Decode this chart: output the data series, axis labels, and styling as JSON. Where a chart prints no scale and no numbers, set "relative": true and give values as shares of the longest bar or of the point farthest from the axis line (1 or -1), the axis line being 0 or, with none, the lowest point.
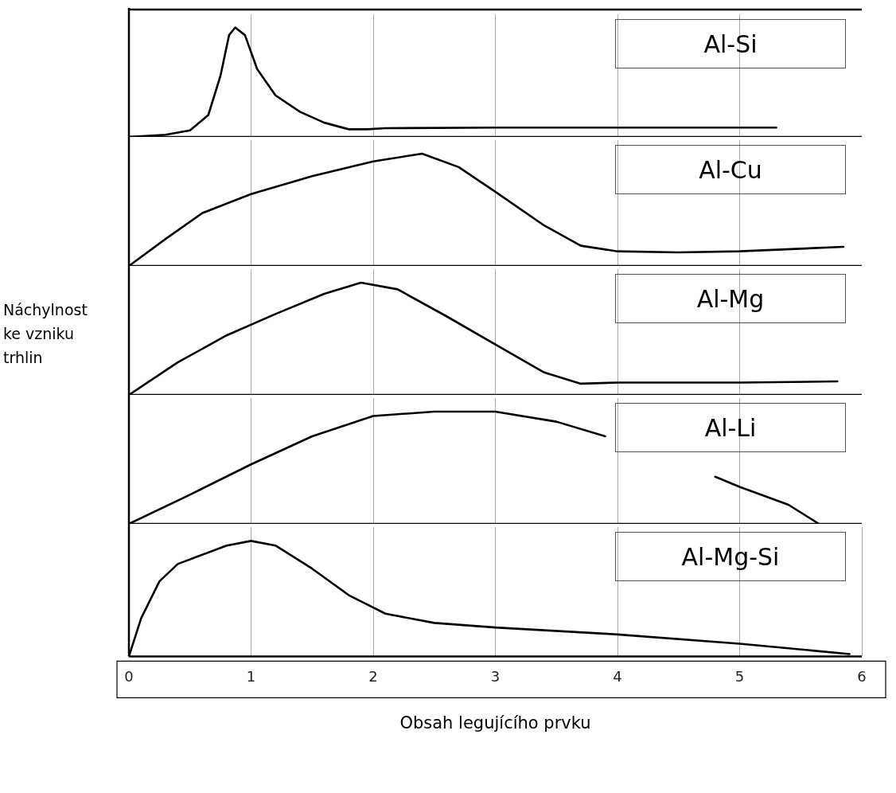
{
  "chart_data": [
    {
      "type": "line",
      "title": "Al-Si",
      "relative": true,
      "xlim": [
        0,
        6
      ],
      "tick_labels": false,
      "grid": "x",
      "series": [
        {
          "color": "#000000",
          "x": [
            0,
            0.3,
            0.5,
            0.65,
            0.75,
            0.82,
            0.87,
            0.95,
            1.05,
            1.2,
            1.4,
            1.6,
            1.8,
            1.95,
            2.1,
            3,
            4,
            5.3
          ],
          "values": [
            0,
            0.02,
            0.06,
            0.2,
            0.56,
            0.93,
            1,
            0.93,
            0.62,
            0.38,
            0.23,
            0.13,
            0.07,
            0.07,
            0.08,
            0.085,
            0.085,
            0.085
          ]
        }
      ]
    },
    {
      "type": "line",
      "title": "Al-Cu",
      "relative": true,
      "xlim": [
        0,
        6
      ],
      "tick_labels": false,
      "grid": "x",
      "series": [
        {
          "color": "#000000",
          "x": [
            0,
            0.3,
            0.6,
            1,
            1.5,
            2,
            2.4,
            2.7,
            3,
            3.4,
            3.7,
            4,
            4.5,
            5,
            5.85
          ],
          "values": [
            0,
            0.24,
            0.47,
            0.64,
            0.8,
            0.93,
            1,
            0.88,
            0.66,
            0.36,
            0.18,
            0.13,
            0.12,
            0.13,
            0.17
          ]
        }
      ]
    },
    {
      "type": "line",
      "title": "Al-Mg",
      "ylabel": "Náchylnost ke vzniku trhlin",
      "relative": true,
      "xlim": [
        0,
        6
      ],
      "tick_labels": false,
      "grid": "x",
      "series": [
        {
          "color": "#000000",
          "x": [
            0,
            0.4,
            0.8,
            1.2,
            1.6,
            1.9,
            2.2,
            2.6,
            3,
            3.4,
            3.7,
            4,
            5,
            5.8
          ],
          "values": [
            0,
            0.29,
            0.53,
            0.72,
            0.9,
            1,
            0.94,
            0.7,
            0.45,
            0.2,
            0.1,
            0.11,
            0.11,
            0.12
          ]
        }
      ]
    },
    {
      "type": "line",
      "title": "Al-Li",
      "relative": true,
      "xlim": [
        0,
        6
      ],
      "tick_labels": false,
      "grid": "x",
      "series": [
        {
          "color": "#000000",
          "x": [
            0,
            0.5,
            1,
            1.5,
            2,
            2.5,
            3,
            3.5,
            3.9,
            4.4,
            4.8,
            5,
            5.4,
            5.65
          ],
          "values": [
            0,
            0.26,
            0.53,
            0.78,
            0.96,
            1,
            1,
            0.91,
            0.78,
            null,
            0.42,
            0.33,
            0.17,
            0
          ]
        }
      ]
    },
    {
      "type": "line",
      "title": "Al-Mg-Si",
      "xlabel": "Obsah legujícího prvku",
      "relative": true,
      "xlim": [
        0,
        6
      ],
      "xticks": [
        0,
        1,
        2,
        3,
        4,
        5,
        6
      ],
      "tick_labels": "x",
      "grid": "x",
      "series": [
        {
          "color": "#000000",
          "x": [
            0,
            0.1,
            0.25,
            0.4,
            0.6,
            0.8,
            1,
            1.2,
            1.5,
            1.8,
            2.1,
            2.5,
            3,
            4,
            5,
            5.9
          ],
          "values": [
            0,
            0.33,
            0.65,
            0.8,
            0.88,
            0.96,
            1,
            0.96,
            0.76,
            0.53,
            0.37,
            0.29,
            0.25,
            0.19,
            0.11,
            0.02
          ]
        }
      ]
    }
  ]
}
